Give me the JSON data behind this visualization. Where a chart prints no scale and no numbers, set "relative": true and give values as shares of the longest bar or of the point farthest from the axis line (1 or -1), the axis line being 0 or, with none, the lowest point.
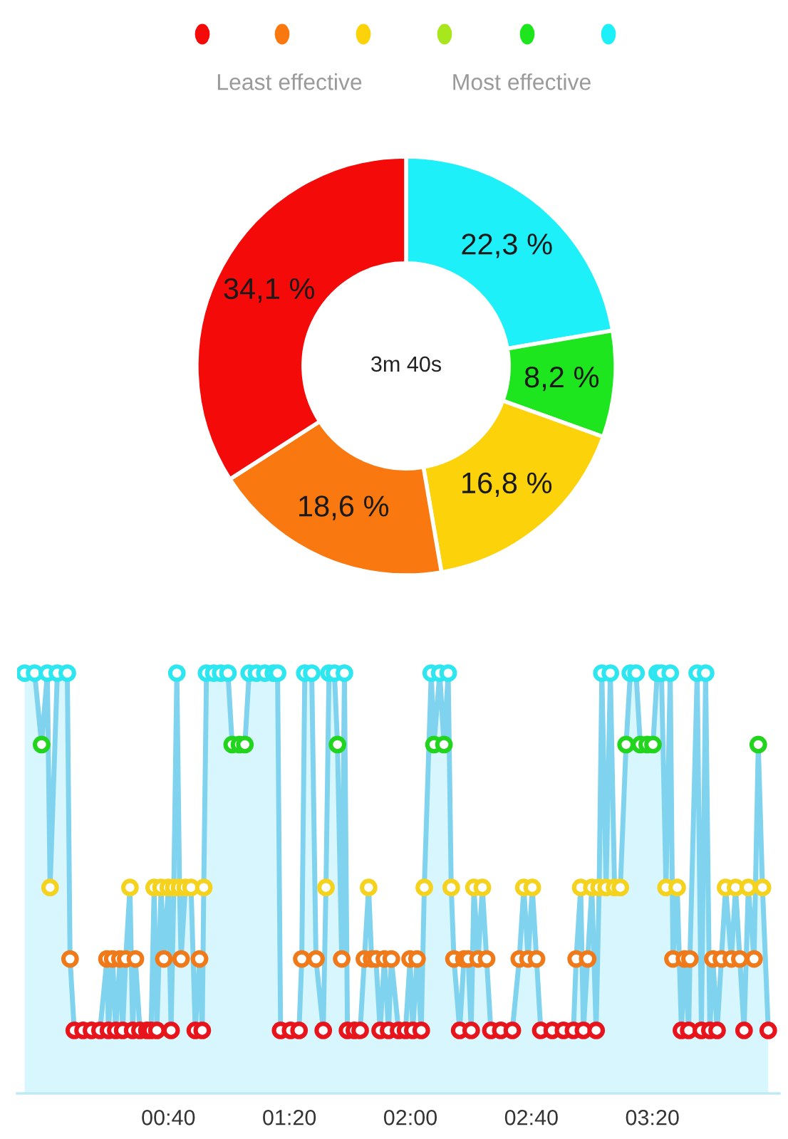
{
  "chart_data": [
    {
      "type": "donut",
      "categories": [
        null,
        null,
        null,
        null,
        null
      ],
      "values": [
        22.3,
        8.2,
        16.8,
        18.6,
        34.1
      ],
      "colors": [
        "#1ef0fa",
        "#1ee61e",
        "#fcd20a",
        "#fa7810",
        "#f50a0a"
      ],
      "value_labels": [
        "22,3 %",
        "8,2 %",
        "16,8 %",
        "18,6 %",
        "34,1 %"
      ],
      "annotations": [
        "Least effective",
        "Most effective",
        "3m 40s"
      ]
    },
    {
      "type": "area",
      "relative": true,
      "tick_labels": "x",
      "grid": false,
      "marker": "circle",
      "xlim": [
        -10,
        242
      ],
      "xticks": [
        {
          "value": 40,
          "label": "00:40"
        },
        {
          "value": 80,
          "label": "01:20"
        },
        {
          "value": 120,
          "label": "02:00"
        },
        {
          "value": 160,
          "label": "02:40"
        },
        {
          "value": 200,
          "label": "03:20"
        }
      ],
      "series": [
        {
          "color": "#7fd3ee",
          "x": [
            -7.5,
            -4.2,
            -1.9,
            0,
            0.9,
            3.3,
            6.6,
            7.5,
            8.9,
            11.8,
            14.6,
            17.4,
            19.7,
            20.2,
            21.6,
            22.6,
            24.0,
            24.9,
            25.9,
            27.3,
            28.2,
            29.1,
            30.6,
            32.9,
            34.3,
            35.3,
            36.2,
            37.6,
            38.5,
            40.0,
            40.9,
            41.8,
            42.8,
            43.7,
            44.2,
            45.6,
            47.5,
            48.9,
            50.3,
            51.2,
            51.7,
            52.6,
            55.0,
            57.3,
            59.7,
            61.1,
            63.5,
            65.3,
            66.7,
            69.1,
            71.9,
            74.7,
            76.1,
            77.1,
            80.4,
            83.2,
            84.1,
            85.1,
            87.4,
            88.8,
            91.2,
            92.1,
            93.1,
            94.9,
            95.9,
            97.3,
            98.2,
            99.2,
            101.5,
            103.4,
            104.8,
            106.2,
            107.2,
            108.6,
            110.0,
            111.4,
            112.8,
            113.7,
            116.1,
            118.4,
            119.9,
            120.8,
            122.2,
            123.6,
            124.6,
            126.9,
            127.8,
            129.7,
            131.1,
            132.5,
            133.5,
            134.4,
            136.3,
            137.7,
            139.1,
            140.1,
            141.0,
            142.4,
            143.8,
            145.2,
            146.6,
            149.9,
            153.7,
            156.0,
            157.5,
            158.9,
            160.3,
            161.7,
            163.1,
            166.9,
            170.6,
            173.9,
            174.8,
            176.3,
            177.2,
            178.6,
            180.0,
            181.4,
            182.4,
            183.3,
            184.7,
            186.1,
            187.5,
            189.4,
            191.3,
            192.7,
            194.6,
            196.0,
            198.3,
            200.2,
            201.6,
            203.0,
            204.5,
            205.9,
            206.8,
            208.2,
            209.6,
            210.6,
            212.0,
            212.4,
            214.8,
            216.2,
            217.6,
            219.0,
            220.0,
            221.4,
            222.8,
            224.2,
            226.1,
            227.5,
            228.9,
            230.3,
            231.7,
            233.6,
            235.0,
            236.4,
            238.3
          ],
          "values": [
            1,
            1,
            0.83,
            1,
            0.49,
            1,
            1,
            0.32,
            0.15,
            0.15,
            0.15,
            0.15,
            0.32,
            0.15,
            0.32,
            0.15,
            0.32,
            0.15,
            0.32,
            0.49,
            0.15,
            0.32,
            0.15,
            0.15,
            0.15,
            0.49,
            0.15,
            0.49,
            0.32,
            0.49,
            0.15,
            0.49,
            1,
            0.49,
            0.32,
            0.49,
            0.49,
            0.15,
            0.32,
            0.15,
            0.49,
            1,
            1,
            1,
            1,
            0.83,
            0.83,
            0.83,
            1,
            1,
            1,
            1,
            1,
            0.15,
            0.15,
            0.15,
            0.32,
            1,
            1,
            0.32,
            0.15,
            0.49,
            1,
            1,
            0.83,
            0.32,
            1,
            0.15,
            0.15,
            0.15,
            0.32,
            0.49,
            0.32,
            0.32,
            0.15,
            0.32,
            0.15,
            0.32,
            0.15,
            0.15,
            0.32,
            0.15,
            0.32,
            0.15,
            0.49,
            1,
            0.83,
            1,
            0.83,
            1,
            0.49,
            0.32,
            0.15,
            0.32,
            0.32,
            0.15,
            0.49,
            0.32,
            0.49,
            0.32,
            0.15,
            0.15,
            0.15,
            0.32,
            0.49,
            0.32,
            0.49,
            0.32,
            0.15,
            0.15,
            0.15,
            0.15,
            0.32,
            0.49,
            0.15,
            0.32,
            0.49,
            0.15,
            0.49,
            1,
            0.49,
            1,
            0.49,
            0.49,
            0.83,
            1,
            1,
            0.83,
            0.83,
            0.83,
            1,
            1,
            0.49,
            1,
            0.32,
            0.49,
            0.15,
            0.32,
            0.15,
            0.32,
            1,
            0.15,
            1,
            0.15,
            0.32,
            0.15,
            0.32,
            0.49,
            0.32,
            0.49,
            0.32,
            0.15,
            0.49,
            0.32,
            0.83,
            0.49,
            0.15
          ],
          "colors": [
            "#2ee6f0",
            "#2ee6f0",
            "#22d41e",
            "#2ee6f0",
            "#f5d21e",
            "#2ee6f0",
            "#2ee6f0",
            "#f07a1a",
            "#e8141c",
            "#e8141c",
            "#e8141c",
            "#e8141c",
            "#f07a1a",
            "#e8141c",
            "#f07a1a",
            "#e8141c",
            "#f07a1a",
            "#e8141c",
            "#f07a1a",
            "#f5d21e",
            "#e8141c",
            "#f07a1a",
            "#e8141c",
            "#e8141c",
            "#e8141c",
            "#f5d21e",
            "#e8141c",
            "#f5d21e",
            "#f07a1a",
            "#f5d21e",
            "#e8141c",
            "#f5d21e",
            "#2ee6f0",
            "#f5d21e",
            "#f07a1a",
            "#f5d21e",
            "#f5d21e",
            "#e8141c",
            "#f07a1a",
            "#e8141c",
            "#f5d21e",
            "#2ee6f0",
            "#2ee6f0",
            "#2ee6f0",
            "#2ee6f0",
            "#22d41e",
            "#22d41e",
            "#22d41e",
            "#2ee6f0",
            "#2ee6f0",
            "#2ee6f0",
            "#2ee6f0",
            "#2ee6f0",
            "#e8141c",
            "#e8141c",
            "#e8141c",
            "#f07a1a",
            "#2ee6f0",
            "#2ee6f0",
            "#f07a1a",
            "#e8141c",
            "#f5d21e",
            "#2ee6f0",
            "#2ee6f0",
            "#22d41e",
            "#f07a1a",
            "#2ee6f0",
            "#e8141c",
            "#e8141c",
            "#e8141c",
            "#f07a1a",
            "#f5d21e",
            "#f07a1a",
            "#f07a1a",
            "#e8141c",
            "#f07a1a",
            "#e8141c",
            "#f07a1a",
            "#e8141c",
            "#e8141c",
            "#f07a1a",
            "#e8141c",
            "#f07a1a",
            "#e8141c",
            "#f5d21e",
            "#2ee6f0",
            "#22d41e",
            "#2ee6f0",
            "#22d41e",
            "#2ee6f0",
            "#f5d21e",
            "#f07a1a",
            "#e8141c",
            "#f07a1a",
            "#f07a1a",
            "#e8141c",
            "#f5d21e",
            "#f07a1a",
            "#f5d21e",
            "#f07a1a",
            "#e8141c",
            "#e8141c",
            "#e8141c",
            "#f07a1a",
            "#f5d21e",
            "#f07a1a",
            "#f5d21e",
            "#f07a1a",
            "#e8141c",
            "#e8141c",
            "#e8141c",
            "#e8141c",
            "#f07a1a",
            "#f5d21e",
            "#e8141c",
            "#f07a1a",
            "#f5d21e",
            "#e8141c",
            "#f5d21e",
            "#2ee6f0",
            "#f5d21e",
            "#2ee6f0",
            "#f5d21e",
            "#f5d21e",
            "#22d41e",
            "#2ee6f0",
            "#2ee6f0",
            "#22d41e",
            "#22d41e",
            "#22d41e",
            "#2ee6f0",
            "#2ee6f0",
            "#f5d21e",
            "#2ee6f0",
            "#f07a1a",
            "#f5d21e",
            "#e8141c",
            "#f07a1a",
            "#e8141c",
            "#f07a1a",
            "#2ee6f0",
            "#e8141c",
            "#2ee6f0",
            "#e8141c",
            "#f07a1a",
            "#e8141c",
            "#f07a1a",
            "#f5d21e",
            "#f07a1a",
            "#f5d21e",
            "#f07a1a",
            "#e8141c",
            "#f5d21e",
            "#f07a1a",
            "#22d41e",
            "#f5d21e",
            "#e8141c"
          ]
        }
      ]
    }
  ]
}
